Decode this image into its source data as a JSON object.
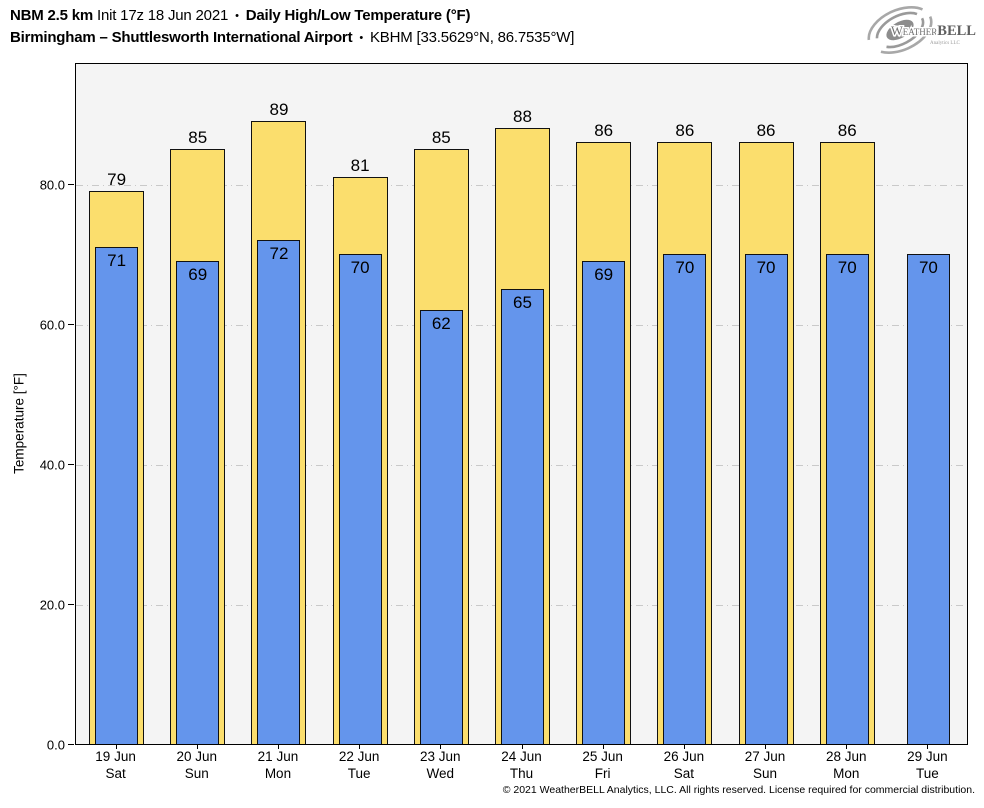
{
  "header": {
    "line1": {
      "model": "NBM 2.5 km",
      "init": "Init 17z 18 Jun 2021",
      "sep": "•",
      "product": "Daily High/Low Temperature (°F)"
    },
    "line2": {
      "station": "Birmingham – Shuttlesworth International Airport",
      "sep": "•",
      "station_id": "KBHM [33.5629°N, 86.7535°W]"
    }
  },
  "logo": {
    "brand_first": "Weather",
    "brand_second": "BELL",
    "brand_sub": "Analytics LLC"
  },
  "footer": {
    "copyright": "© 2021 WeatherBELL Analytics, LLC. All rights reserved. License required for commercial distribution."
  },
  "chart_data": {
    "type": "bar",
    "title": "NBM 2.5 km Daily High/Low Temperature (°F) — Birmingham – Shuttlesworth International Airport (KBHM)",
    "ylabel": "Temperature [°F]",
    "grid": "horizontal dash-dot",
    "legend_position": "none",
    "ylim": [
      0,
      97.4
    ],
    "yticks": [
      0,
      20,
      40,
      60,
      80
    ],
    "ytick_labels": [
      "0.0",
      "20.0",
      "40.0",
      "60.0",
      "80.0"
    ],
    "categories": [
      {
        "date": "19 Jun",
        "day": "Sat"
      },
      {
        "date": "20 Jun",
        "day": "Sun"
      },
      {
        "date": "21 Jun",
        "day": "Mon"
      },
      {
        "date": "22 Jun",
        "day": "Tue"
      },
      {
        "date": "23 Jun",
        "day": "Wed"
      },
      {
        "date": "24 Jun",
        "day": "Thu"
      },
      {
        "date": "25 Jun",
        "day": "Fri"
      },
      {
        "date": "26 Jun",
        "day": "Sat"
      },
      {
        "date": "27 Jun",
        "day": "Sun"
      },
      {
        "date": "28 Jun",
        "day": "Mon"
      },
      {
        "date": "29 Jun",
        "day": "Tue"
      }
    ],
    "series": [
      {
        "name": "High",
        "color": "#FBDE6D",
        "values": [
          79,
          85,
          89,
          81,
          85,
          88,
          86,
          86,
          86,
          86,
          null
        ]
      },
      {
        "name": "Low",
        "color": "#6495EC",
        "values": [
          71,
          69,
          72,
          70,
          62,
          65,
          69,
          70,
          70,
          70,
          70
        ]
      }
    ],
    "colors": {
      "plot_background": "#f4f4f4",
      "gridline": "#c9c9c9",
      "bar_border": "#111111",
      "high_fill": "#FBDE6D",
      "low_fill": "#6495EC"
    }
  }
}
